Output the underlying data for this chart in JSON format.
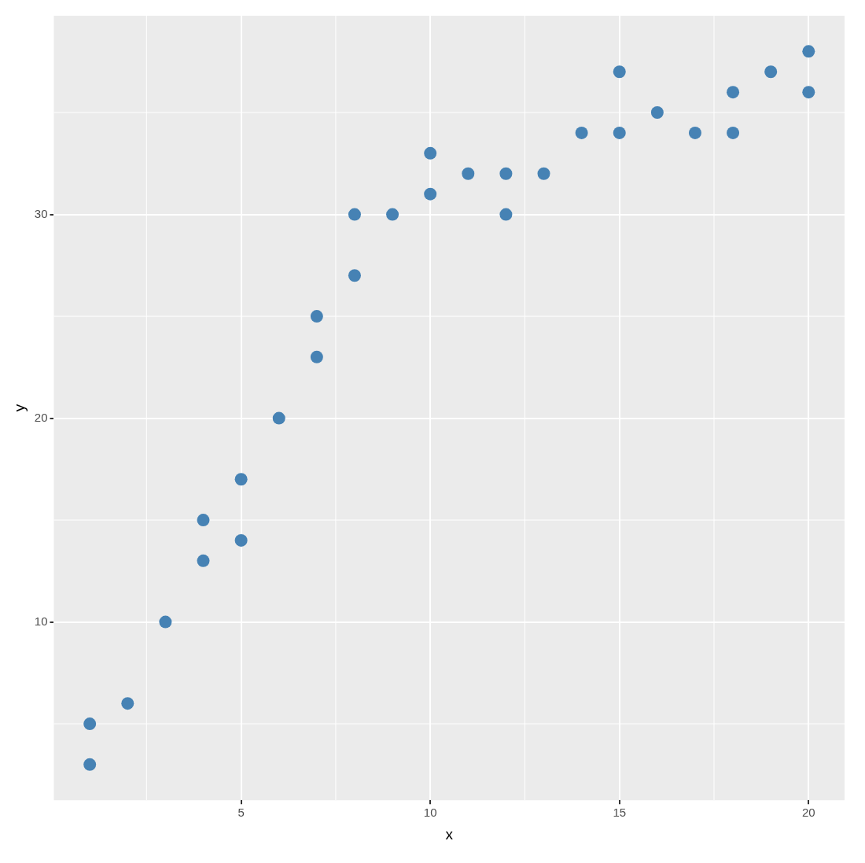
{
  "chart_data": {
    "type": "scatter",
    "xlabel": "x",
    "ylabel": "y",
    "x": [
      1,
      1,
      2,
      3,
      4,
      4,
      5,
      5,
      6,
      7,
      7,
      8,
      8,
      9,
      10,
      10,
      11,
      12,
      12,
      13,
      14,
      15,
      15,
      16,
      17,
      18,
      18,
      19,
      20,
      20
    ],
    "series": [
      {
        "color": "#4682b4",
        "values": [
          5,
          3,
          6,
          10,
          15,
          13,
          17,
          14,
          20,
          25,
          23,
          30,
          27,
          30,
          33,
          31,
          32,
          32,
          30,
          32,
          34,
          37,
          34,
          35,
          34,
          36,
          34,
          37,
          38,
          36
        ]
      }
    ],
    "xlim": [
      0.05,
      20.95
    ],
    "ylim": [
      1.25,
      39.75
    ],
    "xticks": [
      5,
      10,
      15,
      20
    ],
    "yticks": [
      10,
      20,
      30
    ],
    "grid": true,
    "legend": false,
    "marker": "circle"
  }
}
